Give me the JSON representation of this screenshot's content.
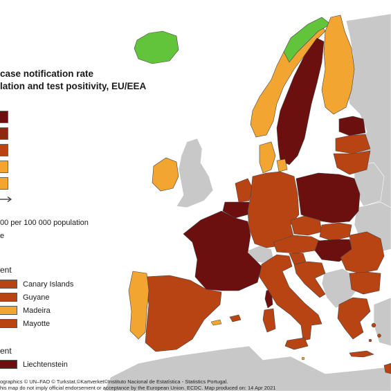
{
  "map": {
    "title_line1": "case notification rate",
    "title_line2": "lation and test positivity, EU/EEA",
    "scale_colors": [
      "#6b0f0f",
      "#8c2a0e",
      "#b84414",
      "#f2a530",
      "#f2a530"
    ],
    "population_note": "00 per 100 000 population",
    "note_fragment": "e",
    "regions_heading_1": "ent",
    "regions_heading_2": "ent",
    "colors": {
      "dark_red": "#6b0f0f",
      "red": "#b84414",
      "orange": "#f2a530",
      "green": "#61c43a",
      "grey": "#c8c8c8",
      "sea": "#ffffff"
    },
    "outermost_regions": [
      {
        "name": "Canary Islands",
        "color": "#b84414"
      },
      {
        "name": "Guyane",
        "color": "#b84414"
      },
      {
        "name": "Madeira",
        "color": "#f2a530"
      },
      {
        "name": "Mayotte",
        "color": "#b84414"
      }
    ],
    "microstates": [
      {
        "name": "Liechtenstein",
        "color": "#6b0f0f"
      }
    ],
    "credit_line1": "ographics © UN–FAO © Turkstat.©Kartverket©Instituto Nacional de Estatística - Statistics Portugal.",
    "credit_line2": "his map do not imply official endorsement or acceptance by the European Union. ECDC. Map produced on: 14 Apr 2021",
    "countries": [
      {
        "name": "Iceland",
        "color": "green"
      },
      {
        "name": "Norway",
        "color": "orange"
      },
      {
        "name": "Sweden",
        "color": "dark_red"
      },
      {
        "name": "Finland",
        "color": "orange"
      },
      {
        "name": "Estonia",
        "color": "dark_red"
      },
      {
        "name": "Latvia",
        "color": "red"
      },
      {
        "name": "Lithuania",
        "color": "red"
      },
      {
        "name": "Denmark",
        "color": "orange"
      },
      {
        "name": "Ireland",
        "color": "orange"
      },
      {
        "name": "United Kingdom",
        "color": "grey"
      },
      {
        "name": "Netherlands",
        "color": "red"
      },
      {
        "name": "Belgium",
        "color": "dark_red"
      },
      {
        "name": "Luxembourg",
        "color": "red"
      },
      {
        "name": "Germany",
        "color": "red"
      },
      {
        "name": "Poland",
        "color": "dark_red"
      },
      {
        "name": "Czechia",
        "color": "red"
      },
      {
        "name": "Slovakia",
        "color": "red"
      },
      {
        "name": "Austria",
        "color": "red"
      },
      {
        "name": "Hungary",
        "color": "dark_red"
      },
      {
        "name": "Switzerland",
        "color": "grey"
      },
      {
        "name": "France",
        "color": "dark_red"
      },
      {
        "name": "Spain",
        "color": "red"
      },
      {
        "name": "Portugal",
        "color": "orange"
      },
      {
        "name": "Italy",
        "color": "red"
      },
      {
        "name": "Slovenia",
        "color": "red"
      },
      {
        "name": "Croatia",
        "color": "red"
      },
      {
        "name": "Romania",
        "color": "red"
      },
      {
        "name": "Bulgaria",
        "color": "red"
      },
      {
        "name": "Greece",
        "color": "red"
      },
      {
        "name": "Cyprus",
        "color": "red"
      },
      {
        "name": "Malta",
        "color": "orange"
      },
      {
        "name": "Belarus",
        "color": "grey"
      },
      {
        "name": "Ukraine",
        "color": "grey"
      },
      {
        "name": "Russia",
        "color": "grey"
      },
      {
        "name": "Turkey",
        "color": "grey"
      },
      {
        "name": "North Africa",
        "color": "grey"
      },
      {
        "name": "Western Balkans",
        "color": "grey"
      }
    ]
  }
}
